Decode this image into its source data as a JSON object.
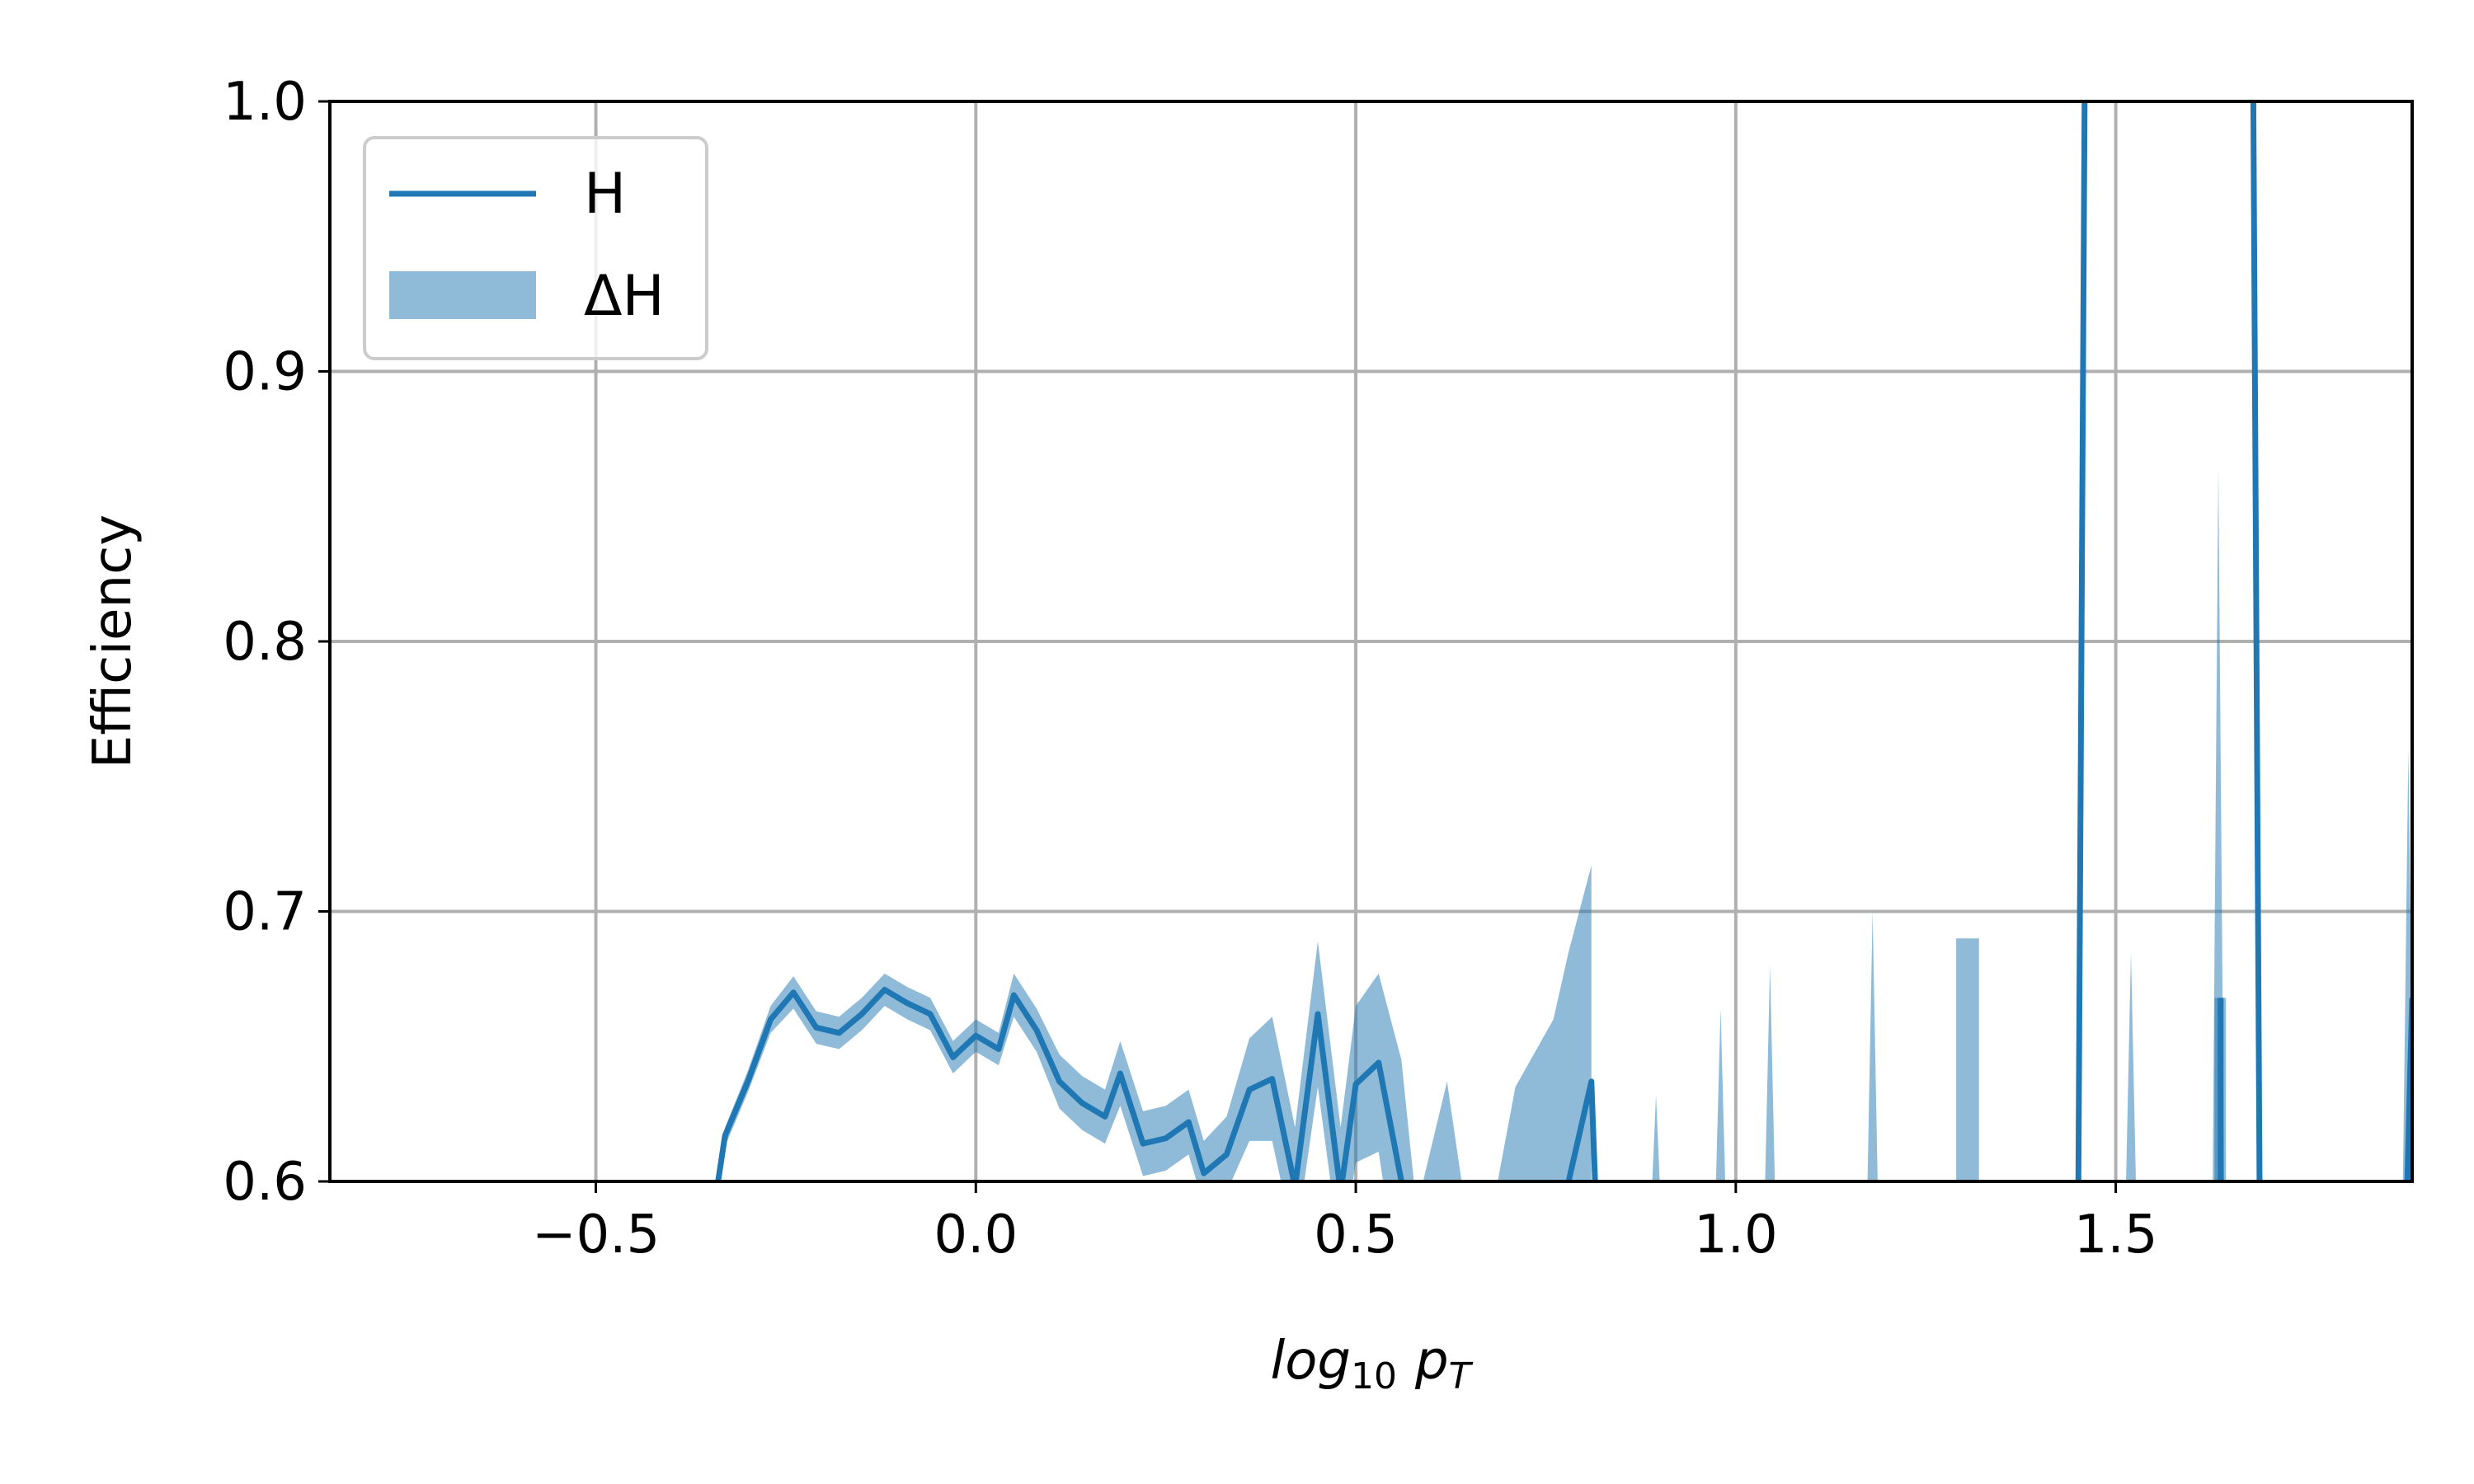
{
  "chart_data": {
    "type": "line",
    "title": "",
    "xlabel": "log₁₀ p_T",
    "xlabel_parts": {
      "base": "log",
      "base_sub": "10",
      "var": "p",
      "var_sub": "T"
    },
    "ylabel": "Efficiency",
    "xlim": [
      -0.85,
      1.89
    ],
    "ylim": [
      0.6,
      1.0
    ],
    "xticks": [
      -0.5,
      0.0,
      0.5,
      1.0,
      1.5
    ],
    "xtick_labels": [
      "−0.5",
      "0.0",
      "0.5",
      "1.0",
      "1.5"
    ],
    "yticks": [
      0.6,
      0.7,
      0.8,
      0.9,
      1.0
    ],
    "ytick_labels": [
      "0.6",
      "0.7",
      "0.8",
      "0.9",
      "1.0"
    ],
    "grid": true,
    "legend_position": "top-left",
    "colors": {
      "line": "#1f77b4",
      "band": "#1f77b4"
    },
    "series": [
      {
        "name": "H",
        "x": [
          -0.35,
          -0.33,
          -0.3,
          -0.27,
          -0.24,
          -0.21,
          -0.18,
          -0.15,
          -0.12,
          -0.09,
          -0.06,
          -0.03,
          0.0,
          0.03,
          0.05,
          0.08,
          0.11,
          0.14,
          0.17,
          0.19,
          0.22,
          0.25,
          0.28,
          0.3,
          0.33,
          0.36,
          0.39,
          0.42,
          0.45,
          0.48,
          0.5,
          0.53,
          0.56,
          0.58,
          0.62,
          0.66,
          0.71,
          0.76,
          0.78,
          0.81,
          0.82,
          1.45,
          1.46,
          1.68,
          1.69,
          1.88,
          1.89
        ],
        "y": [
          0.58,
          0.617,
          0.637,
          0.66,
          0.67,
          0.657,
          0.655,
          0.662,
          0.671,
          0.666,
          0.662,
          0.646,
          0.654,
          0.649,
          0.669,
          0.656,
          0.637,
          0.629,
          0.624,
          0.64,
          0.614,
          0.616,
          0.622,
          0.603,
          0.61,
          0.634,
          0.638,
          0.598,
          0.662,
          0.596,
          0.636,
          0.644,
          0.6,
          0.56,
          0.54,
          0.54,
          0.55,
          0.56,
          0.6,
          0.637,
          0.56,
          0.56,
          1.05,
          1.05,
          0.56,
          0.56,
          0.668
        ]
      }
    ],
    "band": {
      "name": "ΔH",
      "x": [
        -0.35,
        -0.33,
        -0.3,
        -0.27,
        -0.24,
        -0.21,
        -0.18,
        -0.15,
        -0.12,
        -0.09,
        -0.06,
        -0.03,
        0.0,
        0.03,
        0.05,
        0.08,
        0.11,
        0.14,
        0.17,
        0.19,
        0.22,
        0.25,
        0.28,
        0.3,
        0.33,
        0.36,
        0.39,
        0.42,
        0.45,
        0.48,
        0.5,
        0.53,
        0.56,
        0.58,
        0.62,
        0.66,
        0.71,
        0.76,
        0.78,
        0.81
      ],
      "upper": [
        0.58,
        0.62,
        0.641,
        0.665,
        0.676,
        0.663,
        0.661,
        0.668,
        0.677,
        0.672,
        0.668,
        0.652,
        0.66,
        0.655,
        0.677,
        0.664,
        0.647,
        0.639,
        0.634,
        0.652,
        0.626,
        0.628,
        0.634,
        0.615,
        0.624,
        0.653,
        0.661,
        0.62,
        0.689,
        0.62,
        0.665,
        0.677,
        0.645,
        0.59,
        0.637,
        0.56,
        0.635,
        0.66,
        0.685,
        0.717
      ],
      "lower": [
        0.58,
        0.613,
        0.633,
        0.655,
        0.664,
        0.651,
        0.649,
        0.656,
        0.665,
        0.66,
        0.656,
        0.64,
        0.648,
        0.643,
        0.661,
        0.648,
        0.627,
        0.619,
        0.614,
        0.628,
        0.602,
        0.604,
        0.61,
        0.591,
        0.596,
        0.615,
        0.615,
        0.576,
        0.635,
        0.572,
        0.607,
        0.611,
        0.555,
        0.54,
        0.54,
        0.54,
        0.54,
        0.54,
        0.54,
        0.56
      ],
      "spikes": [
        {
          "x": 0.895,
          "y": 0.632
        },
        {
          "x": 0.98,
          "y": 0.664
        },
        {
          "x": 1.045,
          "y": 0.68
        },
        {
          "x": 1.18,
          "y": 0.7
        },
        {
          "x": 1.52,
          "y": 0.685
        },
        {
          "x": 1.635,
          "y": 0.865
        },
        {
          "x": 1.885,
          "y": 0.76
        }
      ],
      "blocks": [
        {
          "x0": 1.29,
          "x1": 1.32,
          "y": 0.69
        },
        {
          "x0": 1.63,
          "x1": 1.645,
          "y": 0.668
        }
      ]
    },
    "legend": [
      {
        "label": "H",
        "kind": "line"
      },
      {
        "label": "ΔH",
        "kind": "band"
      }
    ]
  }
}
